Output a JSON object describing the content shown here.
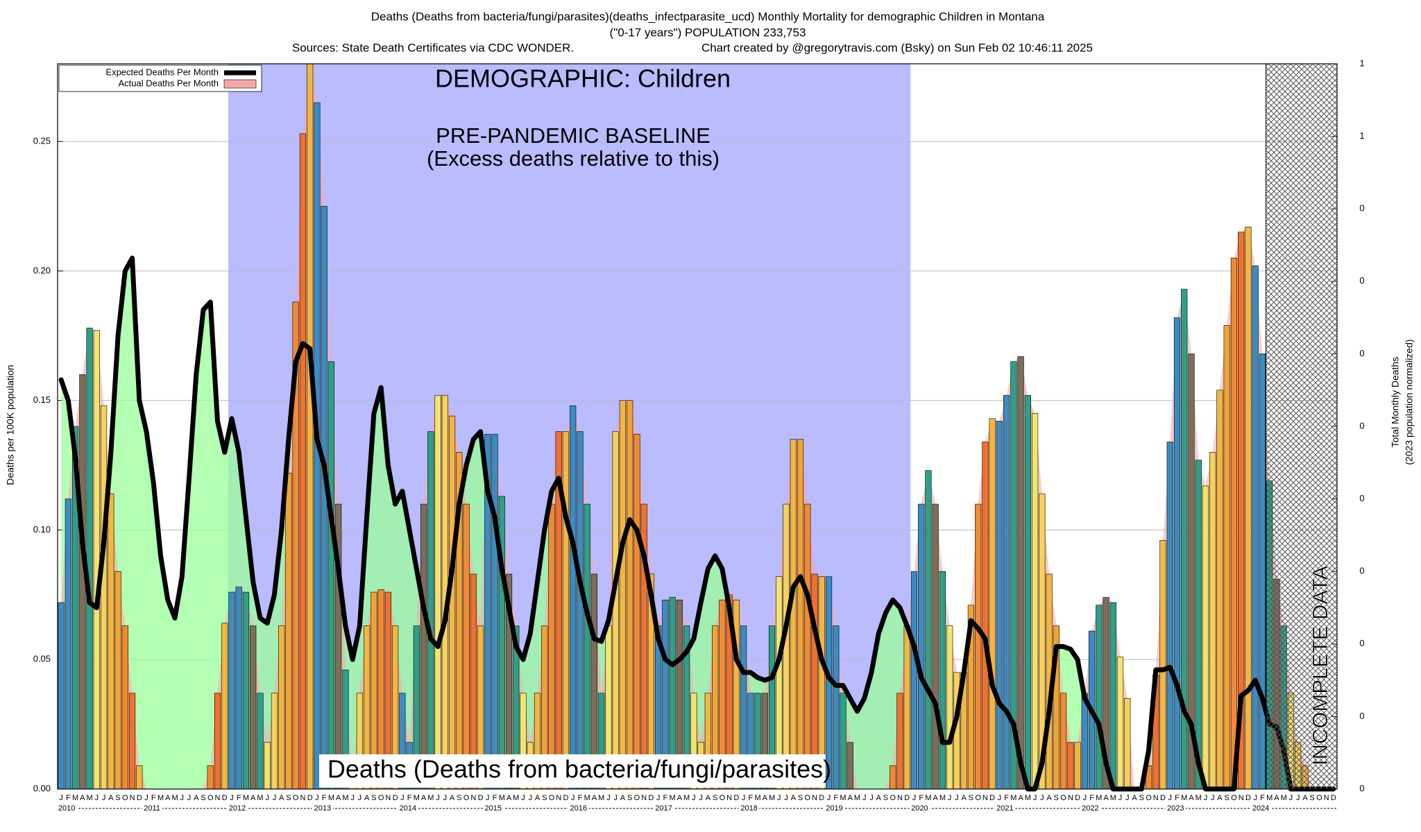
{
  "chart_data": {
    "type": "bar",
    "title": "Deaths (Deaths from bacteria/fungi/parasites)(deaths_infectparasite_ucd) Monthly Mortality for demographic Children in Montana",
    "subtitle": "(\"0-17 years\") POPULATION 233,753",
    "source": "Sources: State Death Certificates via CDC WONDER.",
    "credit": "Chart created by @gregorytravis.com (Bsky) on Sun Feb 02 10:46:11 2025",
    "ylabel": "Deaths per 100K population",
    "y2label": [
      "Total Monthly Deaths",
      "(2023 population normalized)"
    ],
    "annotations": {
      "demographic": "DEMOGRAPHIC: Children",
      "baseline": [
        "PRE-PANDEMIC BASELINE",
        "(Excess deaths relative to this)"
      ],
      "cause": "Deaths (Deaths from bacteria/fungi/parasites)",
      "incomplete": "INCOMPLETE DATA"
    },
    "categories": [
      "J",
      "F",
      "M",
      "A",
      "M",
      "J",
      "J",
      "A",
      "S",
      "O",
      "N",
      "D",
      "J",
      "F",
      "M",
      "A",
      "M",
      "J",
      "J",
      "A",
      "S",
      "O",
      "N",
      "D",
      "J",
      "F",
      "M",
      "A",
      "M",
      "J",
      "J",
      "A",
      "S",
      "O",
      "N",
      "D",
      "J",
      "F",
      "M",
      "A",
      "M",
      "J",
      "J",
      "A",
      "S",
      "O",
      "N",
      "D",
      "J",
      "F",
      "M",
      "A",
      "M",
      "J",
      "J",
      "A",
      "S",
      "O",
      "N",
      "D",
      "J",
      "F",
      "M",
      "A",
      "M",
      "J",
      "J",
      "A",
      "S",
      "O",
      "N",
      "D",
      "J",
      "F",
      "M",
      "A",
      "M",
      "J",
      "J",
      "A",
      "S",
      "O",
      "N",
      "D",
      "J",
      "F",
      "M",
      "A",
      "M",
      "J",
      "J",
      "A",
      "S",
      "O",
      "N",
      "D",
      "J",
      "F",
      "M",
      "A",
      "M",
      "J",
      "J",
      "A",
      "S",
      "O",
      "N",
      "D",
      "J",
      "F",
      "M",
      "A",
      "M",
      "J",
      "J",
      "A",
      "S",
      "O",
      "N",
      "D",
      "J",
      "F",
      "M",
      "A",
      "M",
      "J",
      "J",
      "A",
      "S",
      "O",
      "N",
      "D",
      "J",
      "F",
      "M",
      "A",
      "M",
      "J",
      "J",
      "A",
      "S",
      "O",
      "N",
      "D",
      "J",
      "F",
      "M",
      "A",
      "M",
      "J",
      "J",
      "A",
      "S",
      "O",
      "N",
      "D",
      "J",
      "F",
      "M",
      "A",
      "M",
      "J",
      "J",
      "A",
      "S",
      "O",
      "N",
      "D",
      "J",
      "F",
      "M",
      "A",
      "M",
      "J",
      "J",
      "A",
      "S",
      "O",
      "N",
      "D"
    ],
    "years": [
      "2010",
      "2011",
      "2012",
      "2013",
      "2014",
      "2015",
      "2016",
      "2017",
      "2018",
      "2019",
      "2020",
      "2021",
      "2022",
      "2023",
      "2024"
    ],
    "series": [
      {
        "name": "Actual Deaths Per Month",
        "type": "bar",
        "color": "#f6a8a8",
        "bar_colors": [
          "#3a8cc2",
          "#3a8cc2",
          "#2e9f88",
          "#7b6e5a",
          "#2e9f88",
          "#f3e46e",
          "#f6d25c",
          "#f2b641",
          "#f3a334",
          "#f38a32",
          "#f2702e",
          "#f2b641"
        ],
        "values": [
          0.072,
          0.112,
          0.14,
          0.16,
          0.178,
          0.177,
          0.148,
          0.114,
          0.084,
          0.063,
          0.037,
          0.009,
          0,
          0,
          0,
          0,
          0,
          0,
          0,
          0,
          0,
          0.009,
          0.037,
          0.064,
          0.076,
          0.078,
          0.076,
          0.063,
          0.037,
          0.018,
          0.037,
          0.063,
          0.122,
          0.188,
          0.253,
          0.28,
          0.265,
          0.225,
          0.165,
          0.11,
          0.046,
          0,
          0.037,
          0.063,
          0.076,
          0.077,
          0.076,
          0.063,
          0.037,
          0.018,
          0.063,
          0.11,
          0.138,
          0.152,
          0.152,
          0.144,
          0.13,
          0.11,
          0.083,
          0.063,
          0.137,
          0.137,
          0.113,
          0.083,
          0.063,
          0.037,
          0.018,
          0.037,
          0.063,
          0.11,
          0.138,
          0.138,
          0.148,
          0.138,
          0.11,
          0.083,
          0.037,
          0.063,
          0.138,
          0.15,
          0.15,
          0.137,
          0.11,
          0.083,
          0.063,
          0.073,
          0.074,
          0.073,
          0.063,
          0.037,
          0.018,
          0.037,
          0.063,
          0.073,
          0.075,
          0.073,
          0.063,
          0.037,
          0.037,
          0.037,
          0.063,
          0.082,
          0.11,
          0.135,
          0.135,
          0.11,
          0.083,
          0.082,
          0.082,
          0.063,
          0.037,
          0.018,
          0,
          0,
          0,
          0,
          0,
          0.009,
          0.037,
          0.063,
          0.084,
          0.11,
          0.123,
          0.11,
          0.084,
          0.063,
          0.045,
          0.045,
          0.071,
          0.11,
          0.134,
          0.143,
          0.142,
          0.152,
          0.165,
          0.167,
          0.152,
          0.145,
          0.114,
          0.083,
          0.063,
          0.037,
          0.018,
          0.018,
          0.037,
          0.061,
          0.071,
          0.074,
          0.072,
          0.051,
          0.035,
          0,
          0,
          0.009,
          0.044,
          0.096,
          0.134,
          0.182,
          0.193,
          0.168,
          0.127,
          0.117,
          0.13,
          0.154,
          0.179,
          0.205,
          0.215,
          0.217,
          0.202,
          0.168,
          0.119,
          0.081,
          0.063,
          0.037,
          0.018,
          0.009,
          0,
          0,
          0,
          0
        ]
      },
      {
        "name": "Expected Deaths Per Month",
        "type": "line",
        "color": "#000000",
        "fill": "#99ff99",
        "values": [
          0.158,
          0.15,
          0.128,
          0.095,
          0.072,
          0.07,
          0.095,
          0.13,
          0.175,
          0.2,
          0.205,
          0.15,
          0.138,
          0.118,
          0.09,
          0.073,
          0.066,
          0.082,
          0.12,
          0.16,
          0.185,
          0.188,
          0.142,
          0.13,
          0.143,
          0.13,
          0.105,
          0.08,
          0.066,
          0.064,
          0.075,
          0.1,
          0.135,
          0.165,
          0.172,
          0.17,
          0.135,
          0.125,
          0.105,
          0.085,
          0.063,
          0.05,
          0.063,
          0.105,
          0.145,
          0.155,
          0.125,
          0.11,
          0.115,
          0.1,
          0.085,
          0.07,
          0.058,
          0.055,
          0.065,
          0.085,
          0.11,
          0.125,
          0.135,
          0.138,
          0.115,
          0.105,
          0.085,
          0.07,
          0.055,
          0.05,
          0.06,
          0.08,
          0.1,
          0.115,
          0.12,
          0.105,
          0.095,
          0.08,
          0.068,
          0.058,
          0.057,
          0.065,
          0.08,
          0.095,
          0.104,
          0.1,
          0.09,
          0.075,
          0.058,
          0.05,
          0.048,
          0.05,
          0.053,
          0.058,
          0.072,
          0.085,
          0.09,
          0.085,
          0.07,
          0.05,
          0.045,
          0.045,
          0.043,
          0.042,
          0.043,
          0.05,
          0.063,
          0.078,
          0.082,
          0.075,
          0.062,
          0.05,
          0.043,
          0.04,
          0.04,
          0.035,
          0.03,
          0.035,
          0.045,
          0.06,
          0.068,
          0.073,
          0.07,
          0.063,
          0.055,
          0.043,
          0.038,
          0.033,
          0.018,
          0.018,
          0.028,
          0.045,
          0.065,
          0.062,
          0.058,
          0.04,
          0.033,
          0.03,
          0.025,
          0.01,
          0,
          0,
          0.01,
          0.03,
          0.055,
          0.055,
          0.054,
          0.05,
          0.035,
          0.03,
          0.025,
          0.01,
          0,
          0,
          0,
          0,
          0,
          0.015,
          0.046,
          0.046,
          0.047,
          0.04,
          0.03,
          0.025,
          0.01,
          0,
          0,
          0,
          0,
          0,
          0.036,
          0.038,
          0.042,
          0.035,
          0.025,
          0.024,
          0.015,
          0,
          0,
          0,
          0,
          0,
          0,
          0
        ]
      }
    ],
    "ylim": [
      0,
      0.28
    ],
    "yticks": [
      {
        "value": 0,
        "label": "0.00"
      },
      {
        "value": 0.05,
        "label": "0.05"
      },
      {
        "value": 0.1,
        "label": "0.10"
      },
      {
        "value": 0.15,
        "label": "0.15"
      },
      {
        "value": 0.2,
        "label": "0.20"
      },
      {
        "value": 0.25,
        "label": "0.25"
      }
    ],
    "y2lim": [
      0,
      0.6
    ],
    "y2ticks": [
      {
        "value": 0,
        "label": "0"
      },
      {
        "value": 0.06,
        "label": "0"
      },
      {
        "value": 0.12,
        "label": "0"
      },
      {
        "value": 0.18,
        "label": "0"
      },
      {
        "value": 0.24,
        "label": "0"
      },
      {
        "value": 0.3,
        "label": "0"
      },
      {
        "value": 0.36,
        "label": "0"
      },
      {
        "value": 0.42,
        "label": "0"
      },
      {
        "value": 0.48,
        "label": "0"
      },
      {
        "value": 0.54,
        "label": "1"
      },
      {
        "value": 0.6,
        "label": "1"
      }
    ],
    "grid": true,
    "legend": "top-left",
    "baseline_color": "#bbbbff"
  }
}
